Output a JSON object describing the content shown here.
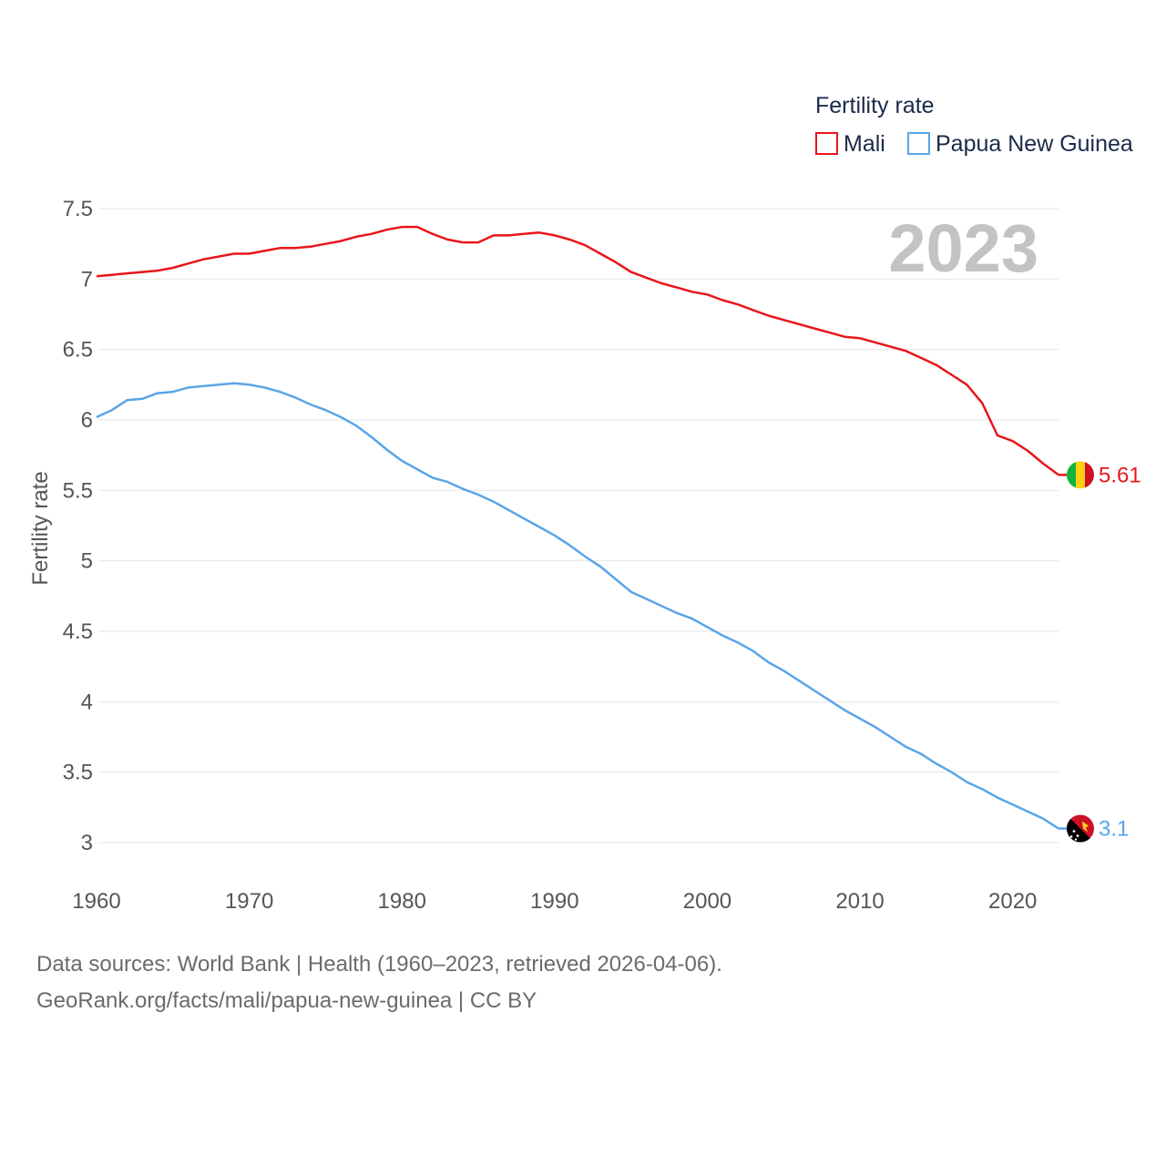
{
  "chart_data": {
    "type": "line",
    "legend_title": "Fertility rate",
    "ylabel": "Fertility rate",
    "year_label": "2023",
    "ylim": [
      3,
      7.5
    ],
    "xlim": [
      1960,
      2023
    ],
    "y_ticks": [
      "3",
      "3.5",
      "4",
      "4.5",
      "5",
      "5.5",
      "6",
      "6.5",
      "7",
      "7.5"
    ],
    "x_ticks": [
      "1960",
      "1970",
      "1980",
      "1990",
      "2000",
      "2010",
      "2020"
    ],
    "legend_position": "top-right",
    "x": [
      1960,
      1961,
      1962,
      1963,
      1964,
      1965,
      1966,
      1967,
      1968,
      1969,
      1970,
      1971,
      1972,
      1973,
      1974,
      1975,
      1976,
      1977,
      1978,
      1979,
      1980,
      1981,
      1982,
      1983,
      1984,
      1985,
      1986,
      1987,
      1988,
      1989,
      1990,
      1991,
      1992,
      1993,
      1994,
      1995,
      1996,
      1997,
      1998,
      1999,
      2000,
      2001,
      2002,
      2003,
      2004,
      2005,
      2006,
      2007,
      2008,
      2009,
      2010,
      2011,
      2012,
      2013,
      2014,
      2015,
      2016,
      2017,
      2018,
      2019,
      2020,
      2021,
      2022,
      2023
    ],
    "series": [
      {
        "name": "Mali",
        "color": "#e8161b",
        "end_label": "5.61",
        "values": [
          7.02,
          7.03,
          7.04,
          7.05,
          7.06,
          7.08,
          7.11,
          7.14,
          7.16,
          7.18,
          7.18,
          7.2,
          7.22,
          7.22,
          7.23,
          7.25,
          7.27,
          7.3,
          7.32,
          7.35,
          7.37,
          7.37,
          7.32,
          7.28,
          7.26,
          7.26,
          7.31,
          7.31,
          7.32,
          7.33,
          7.31,
          7.28,
          7.24,
          7.18,
          7.12,
          7.05,
          7.01,
          6.97,
          6.94,
          6.91,
          6.89,
          6.85,
          6.82,
          6.78,
          6.74,
          6.71,
          6.68,
          6.65,
          6.62,
          6.59,
          6.58,
          6.55,
          6.52,
          6.49,
          6.44,
          6.39,
          6.32,
          6.25,
          6.12,
          5.89,
          5.85,
          5.78,
          5.69,
          5.61
        ]
      },
      {
        "name": "Papua New Guinea",
        "color": "#5aa5e8",
        "end_label": "3.1",
        "values": [
          6.02,
          6.07,
          6.14,
          6.15,
          6.19,
          6.2,
          6.23,
          6.24,
          6.25,
          6.26,
          6.25,
          6.23,
          6.2,
          6.16,
          6.11,
          6.07,
          6.02,
          5.96,
          5.88,
          5.79,
          5.71,
          5.65,
          5.59,
          5.56,
          5.51,
          5.47,
          5.42,
          5.36,
          5.3,
          5.24,
          5.18,
          5.11,
          5.03,
          4.96,
          4.87,
          4.78,
          4.73,
          4.68,
          4.63,
          4.59,
          4.53,
          4.47,
          4.42,
          4.36,
          4.28,
          4.22,
          4.15,
          4.08,
          4.01,
          3.94,
          3.88,
          3.82,
          3.75,
          3.68,
          3.63,
          3.56,
          3.5,
          3.43,
          3.38,
          3.32,
          3.27,
          3.22,
          3.17,
          3.1
        ]
      }
    ]
  },
  "footer": {
    "line1": "Data sources: World Bank | Health (1960–2023, retrieved 2026-04-06).",
    "line2": "GeoRank.org/facts/mali/papua-new-guinea | CC BY"
  }
}
